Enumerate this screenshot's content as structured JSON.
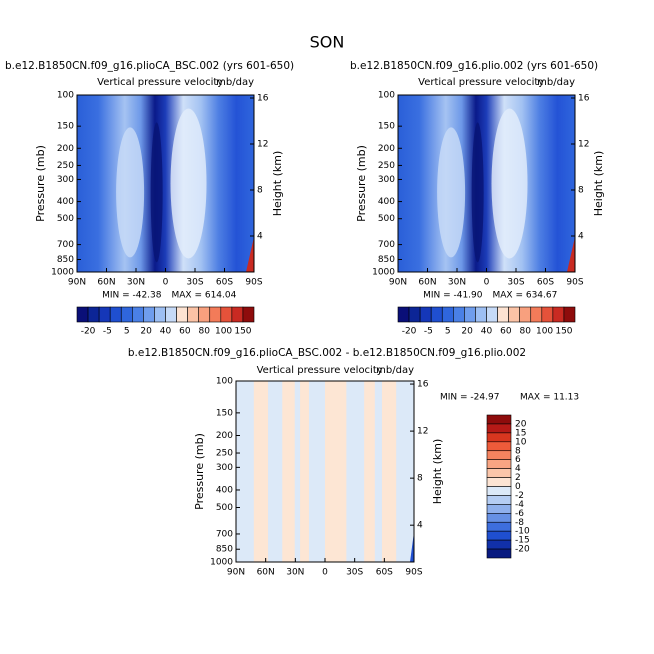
{
  "title": "SON",
  "panels": [
    {
      "subtitle": "b.e12.B1850CN.f09_g16.plioCA_BSC.002 (yrs 601-650)",
      "field": "Vertical pressure velocity",
      "units": "mb/day",
      "y_label": "Pressure (mb)",
      "y2_label": "Height (km)",
      "min": "MIN = -42.38",
      "max": "MAX = 614.04"
    },
    {
      "subtitle": "b.e12.B1850CN.f09_g16.plio.002 (yrs 601-650)",
      "field": "Vertical pressure velocity",
      "units": "mb/day",
      "y_label": "Pressure (mb)",
      "y2_label": "Height (km)",
      "min": "MIN = -41.90",
      "max": "MAX = 634.67"
    },
    {
      "subtitle": "b.e12.B1850CN.f09_g16.plioCA_BSC.002 - b.e12.B1850CN.f09_g16.plio.002",
      "field": "Vertical pressure velocity",
      "units": "mb/day",
      "y_label": "Pressure (mb)",
      "y2_label": "Height (km)",
      "min": "MIN = -24.97",
      "max": "MAX = 11.13"
    }
  ],
  "pressure_ticks": [
    100,
    150,
    200,
    250,
    300,
    400,
    500,
    700,
    850,
    1000
  ],
  "height_ticks": [
    4,
    8,
    12,
    16
  ],
  "lat_ticks": [
    {
      "value": 90,
      "label": "90N"
    },
    {
      "value": 60,
      "label": "60N"
    },
    {
      "value": 30,
      "label": "30N"
    },
    0,
    {
      "value": -30,
      "label": "30S"
    },
    {
      "value": -60,
      "label": "60S"
    },
    {
      "value": -90,
      "label": "90S"
    }
  ],
  "colorbar_abs": {
    "labels": [
      -20,
      -5,
      5,
      20,
      40,
      60,
      80,
      100,
      150
    ],
    "colors": [
      "#0a0f78",
      "#0c2596",
      "#1537b8",
      "#1f4fd0",
      "#2f66dd",
      "#4a80e6",
      "#6f9ded",
      "#9dbff3",
      "#c6daf7",
      "#fde3d2",
      "#fbc3a6",
      "#f8a07e",
      "#f37b59",
      "#e5523a",
      "#c92a22",
      "#8e0c0c"
    ]
  },
  "colorbar_diff": {
    "labels": [
      20,
      15,
      10,
      8,
      6,
      4,
      2,
      0,
      -2,
      -4,
      -6,
      -8,
      -10,
      -15,
      -20
    ],
    "colors": [
      "#8e0c0c",
      "#b61a17",
      "#d8361f",
      "#ee5b3a",
      "#f5835f",
      "#f8a583",
      "#fbc6aa",
      "#fde4d3",
      "#dce9f8",
      "#b5cdf3",
      "#8fb0ec",
      "#6690e4",
      "#3d6edd",
      "#1f4fd0",
      "#1130a8",
      "#081a80"
    ]
  }
}
